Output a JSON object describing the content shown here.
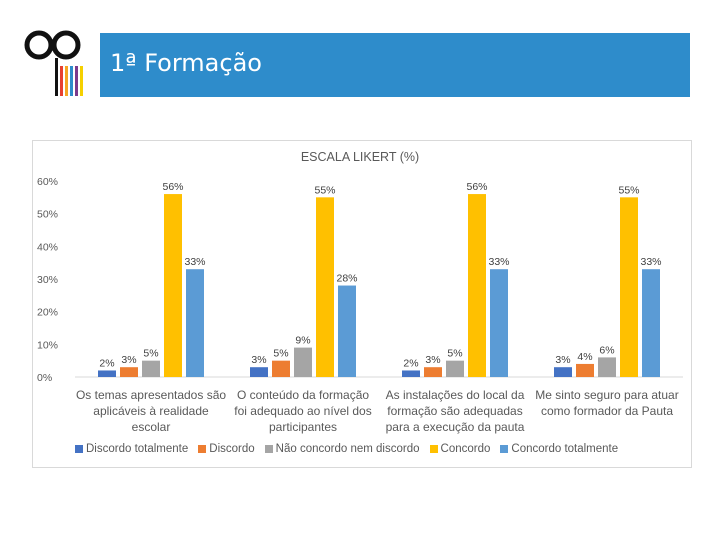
{
  "slide": {
    "title": "1ª Formação"
  },
  "colors": {
    "banner": "#2e8ccb",
    "series": [
      "#4472c4",
      "#ed7d31",
      "#a5a5a5",
      "#ffc000",
      "#5b9bd5"
    ]
  },
  "chart_data": {
    "type": "bar",
    "title": "ESCALA LIKERT (%)",
    "categories": [
      [
        "Os temas apresentados são",
        "aplicáveis à realidade",
        "escolar"
      ],
      [
        "O conteúdo da formação",
        "foi adequado ao nível dos",
        "participantes"
      ],
      [
        "As instalações do local da",
        "formação são adequadas",
        "para a execução da pauta"
      ],
      [
        "Me sinto seguro para atuar",
        "como formador da Pauta"
      ]
    ],
    "series": [
      {
        "name": "Discordo totalmente",
        "values": [
          2,
          3,
          2,
          3
        ]
      },
      {
        "name": "Discordo",
        "values": [
          3,
          5,
          3,
          4
        ]
      },
      {
        "name": "Não concordo nem discordo",
        "values": [
          5,
          9,
          5,
          6
        ]
      },
      {
        "name": "Concordo",
        "values": [
          56,
          55,
          56,
          55
        ]
      },
      {
        "name": "Concordo totalmente",
        "values": [
          33,
          28,
          33,
          33
        ]
      }
    ],
    "value_suffix": "%",
    "ylim": [
      0,
      60
    ],
    "yticks": [
      "0%",
      "10%",
      "20%",
      "30%",
      "40%",
      "50%",
      "60%"
    ],
    "xlabel": "",
    "ylabel": "",
    "grid": false,
    "data_labels": true,
    "legend_position": "bottom"
  }
}
